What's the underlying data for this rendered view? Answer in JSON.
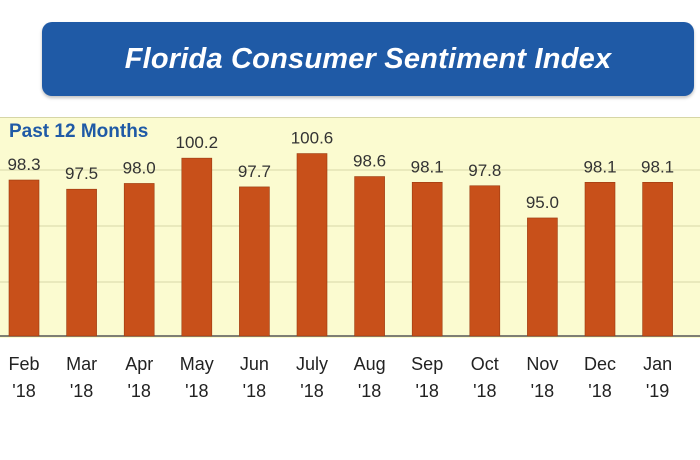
{
  "title": "Florida Consumer Sentiment Index",
  "subtitle": "Past 12 Months",
  "colors": {
    "banner": "#1f5aa6",
    "bar": "#c8501a",
    "plot_background": "#fbfbd0",
    "subtitle": "#1f5aa6"
  },
  "chart_data": {
    "type": "bar",
    "title": "Florida Consumer Sentiment Index",
    "subtitle": "Past 12 Months",
    "categories": [
      [
        "Feb",
        "'18"
      ],
      [
        "Mar",
        "'18"
      ],
      [
        "Apr",
        "'18"
      ],
      [
        "May",
        "'18"
      ],
      [
        "Jun",
        "'18"
      ],
      [
        "July",
        "'18"
      ],
      [
        "Aug",
        "'18"
      ],
      [
        "Sep",
        "'18"
      ],
      [
        "Oct",
        "'18"
      ],
      [
        "Nov",
        "'18"
      ],
      [
        "Dec",
        "'18"
      ],
      [
        "Jan",
        "'19"
      ]
    ],
    "values": [
      98.3,
      97.5,
      98.0,
      100.2,
      97.7,
      100.6,
      98.6,
      98.1,
      97.8,
      95.0,
      98.1,
      98.1
    ],
    "value_labels": [
      "98.3",
      "97.5",
      "98.0",
      "100.2",
      "97.7",
      "100.6",
      "98.6",
      "98.1",
      "97.8",
      "95.0",
      "98.1",
      "98.1"
    ],
    "grid": true,
    "legend": "none"
  }
}
